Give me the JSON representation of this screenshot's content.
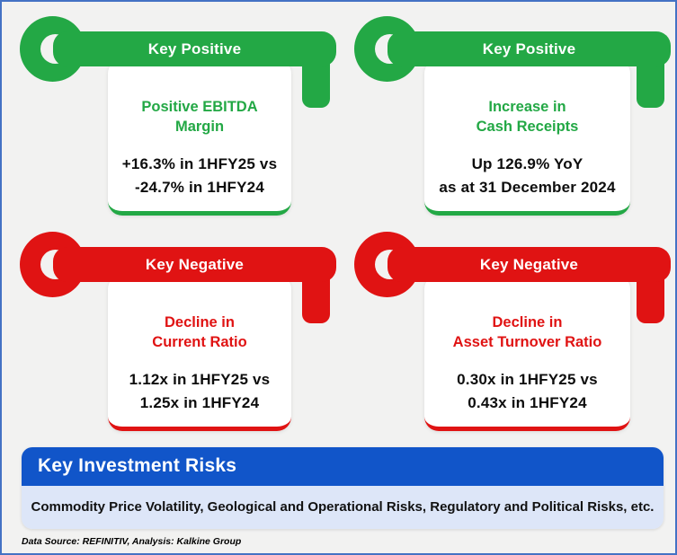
{
  "cards": [
    {
      "sentiment": "positive",
      "header": "Key Positive",
      "title": [
        "Positive EBITDA",
        "Margin"
      ],
      "detail": [
        "+16.3% in 1HFY25 vs",
        "-24.7% in 1HFY24"
      ]
    },
    {
      "sentiment": "positive",
      "header": "Key Positive",
      "title": [
        "Increase in",
        "Cash Receipts"
      ],
      "detail": [
        "Up 126.9% YoY",
        "as at 31 December 2024"
      ]
    },
    {
      "sentiment": "negative",
      "header": "Key Negative",
      "title": [
        "Decline in",
        "Current Ratio"
      ],
      "detail": [
        "1.12x in 1HFY25 vs",
        "1.25x in 1HFY24"
      ]
    },
    {
      "sentiment": "negative",
      "header": "Key Negative",
      "title": [
        "Decline in",
        "Asset Turnover Ratio"
      ],
      "detail": [
        "0.30x in 1HFY25 vs",
        "0.43x in 1HFY24"
      ]
    }
  ],
  "risks": {
    "title": "Key Investment Risks",
    "description": "Commodity Price Volatility, Geological and Operational Risks, Regulatory and Political Risks, etc."
  },
  "footer": {
    "source_note": "Data Source: REFINITIV, Analysis: Kalkine Group"
  },
  "colors": {
    "positive_green": "#23A845",
    "negative_red": "#E01313",
    "banner_blue": "#1155C9",
    "panel_light_blue": "#DDE6F8",
    "background": "#F2F2F1",
    "frame_border": "#4472C4"
  }
}
